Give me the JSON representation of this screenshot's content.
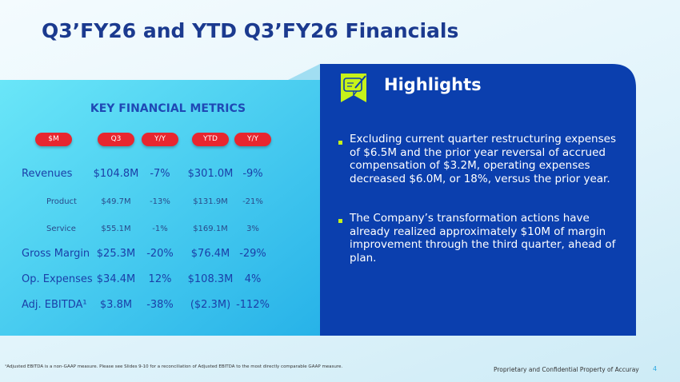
{
  "title": "Q3’FY26 and YTD Q3’FY26 Financials",
  "metrics": {
    "heading": "KEY FINANCIAL METRICS",
    "headers": [
      "$M",
      "Q3",
      "Y/Y",
      "YTD",
      "Y/Y"
    ],
    "rows": [
      [
        "Revenues",
        "$104.8M",
        "-7%",
        "$301.0M",
        "-9%"
      ],
      [
        "Product",
        "$49.7M",
        "-13%",
        "$131.9M",
        "-21%"
      ],
      [
        "Service",
        "$55.1M",
        "-1%",
        "$169.1M",
        "3%"
      ],
      [
        "Gross Margin",
        "$25.3M",
        "-20%",
        "$76.4M",
        "-29%"
      ],
      [
        "Op. Expenses",
        "$34.4M",
        "12%",
        "$108.3M",
        "4%"
      ],
      [
        "Adj. EBITDA¹",
        "$3.8M",
        "-38%",
        "($2.3M)",
        "-112%"
      ]
    ]
  },
  "highlights": {
    "title": "Highlights",
    "bullets": [
      "Excluding current quarter restructuring expenses of $6.5M and the prior year reversal of accrued compensation of $3.2M, operating expenses decreased $6.0M, or 18%, versus the prior year.",
      "The Company’s transformation actions have already realized approximately $10M of margin improvement through the third quarter, ahead of plan."
    ]
  },
  "footnote": "¹Adjusted EBITDA is a non-GAAP measure.  Please see Slides 9-10 for a reconciliation of Adjusted EBITDA to the most directly comparable GAAP measure.",
  "footer": {
    "confidential": "Proprietary and Confidential Property of Accuray",
    "page": "4"
  }
}
